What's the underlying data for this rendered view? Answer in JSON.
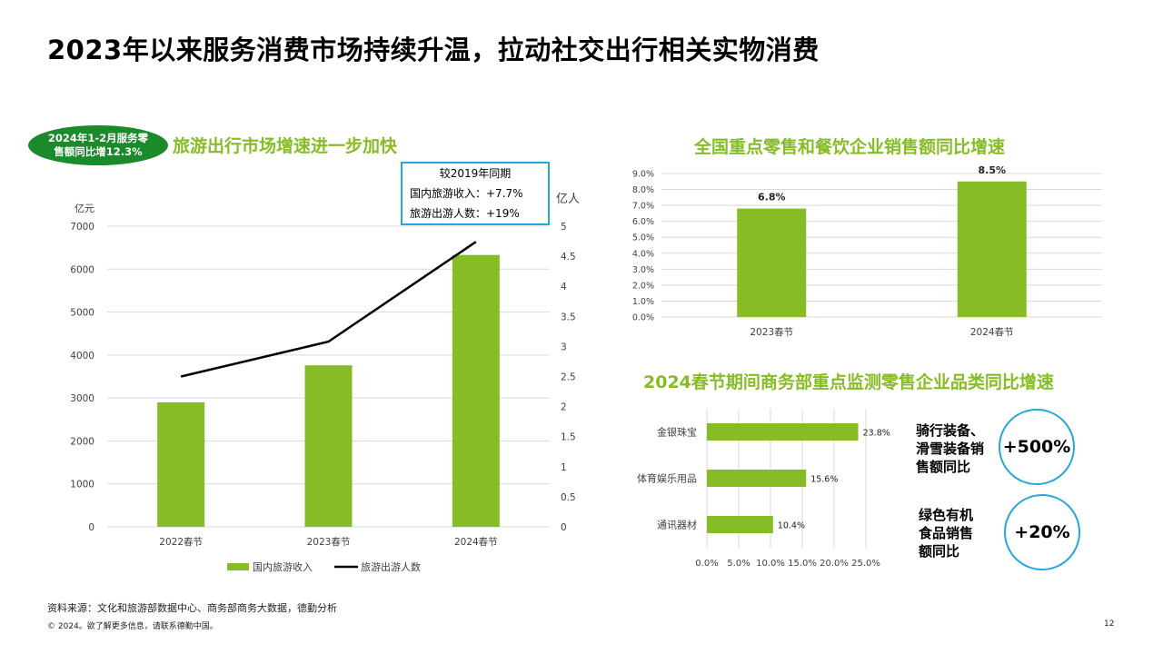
{
  "page": {
    "title": "2023年以来服务消费市场持续升温，拉动社交出行相关实物消费",
    "footer_source": "资料来源：文化和旅游部数据中心、商务部商务大数据，德勤分析",
    "footer_copy": "© 2024。欲了解更多信息，请联系德勤中国。",
    "page_number": "12"
  },
  "badge": {
    "line1": "2024年1-2月服务零",
    "line2": "售额同比增12.3%"
  },
  "left_panel": {
    "title": "旅游出行市场增速进一步加快",
    "note_title": "较2019年同期",
    "note_line1": "国内旅游收入：+7.7%",
    "note_line2": "旅游出游人数：+19%"
  },
  "right_callouts": {
    "callout1": {
      "lines": [
        "骑行装备、",
        "滑雪装备销",
        "售额同比"
      ],
      "value": "+500%"
    },
    "callout2": {
      "lines": [
        "绿色有机",
        "食品销售",
        "额同比"
      ],
      "value": "+20%"
    }
  },
  "colors": {
    "green": "#86bc25",
    "dark_green": "#1a8a2b",
    "blue": "#27a6dc",
    "line": "#000000"
  },
  "chart_data": [
    {
      "type": "bar",
      "title": "",
      "categories": [
        "2022春节",
        "2023春节",
        "2024春节"
      ],
      "series": [
        {
          "name": "国内旅游收入",
          "type": "bar",
          "axis": "left",
          "values": [
            2900,
            3760,
            6330
          ]
        },
        {
          "name": "旅游出游人数",
          "type": "line",
          "axis": "right",
          "values": [
            2.5,
            3.08,
            4.74
          ]
        }
      ],
      "ylabel_left": "亿元",
      "ylabel_right": "亿人",
      "ylim_left": [
        0,
        7000
      ],
      "yticks_left": [
        "0",
        "1000",
        "2000",
        "3000",
        "4000",
        "5000",
        "6000",
        "7000"
      ],
      "ylim_right": [
        0,
        5
      ],
      "yticks_right": [
        "0",
        "0.5",
        "1",
        "1.5",
        "2",
        "2.5",
        "3",
        "3.5",
        "4",
        "4.5",
        "5"
      ],
      "legend": [
        "国内旅游收入",
        "旅游出游人数"
      ],
      "legend_position": "bottom",
      "grid": true
    },
    {
      "type": "bar",
      "title": "全国重点零售和餐饮企业销售额同比增速",
      "categories": [
        "2023春节",
        "2024春节"
      ],
      "values": [
        6.8,
        8.5
      ],
      "data_labels": [
        "6.8%",
        "8.5%"
      ],
      "ylim": [
        0,
        9
      ],
      "yticks": [
        "0.0%",
        "1.0%",
        "2.0%",
        "3.0%",
        "4.0%",
        "5.0%",
        "6.0%",
        "7.0%",
        "8.0%",
        "9.0%"
      ],
      "grid": true
    },
    {
      "type": "bar",
      "orientation": "horizontal",
      "title": "2024春节期间商务部重点监测零售企业品类同比增速",
      "categories": [
        "金银珠宝",
        "体育娱乐用品",
        "通讯器材"
      ],
      "values": [
        23.8,
        15.6,
        10.4
      ],
      "data_labels": [
        "23.8%",
        "15.6%",
        "10.4%"
      ],
      "xlim": [
        0,
        25
      ],
      "xticks": [
        "0.0%",
        "5.0%",
        "10.0%",
        "15.0%",
        "20.0%",
        "25.0%"
      ],
      "grid": true
    }
  ]
}
